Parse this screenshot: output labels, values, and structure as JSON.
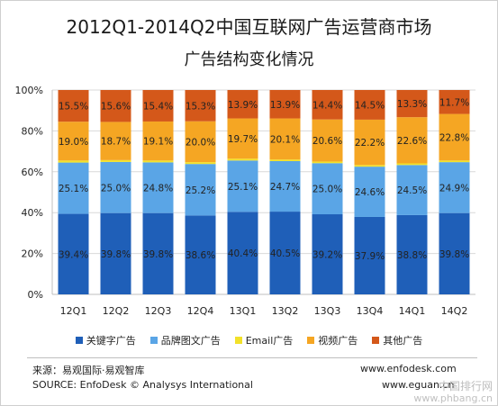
{
  "title_line1": "2012Q1-2014Q2中国互联网广告运营商市场",
  "title_line2": "广告结构变化情况",
  "source_cn": "来源：易观国际·易观智库",
  "source_en": "SOURCE: EnfoDesk © Analysys International",
  "url1": "www.enfodesk.com",
  "url2": "www.eguan.cn",
  "watermark1": "中国排行网",
  "watermark2": "www.phbang.cn",
  "chart_data": {
    "type": "bar",
    "stacked": true,
    "percent": true,
    "categories": [
      "12Q1",
      "12Q2",
      "12Q3",
      "12Q4",
      "13Q1",
      "13Q2",
      "13Q3",
      "13Q4",
      "14Q1",
      "14Q2"
    ],
    "y_ticks": [
      "0%",
      "20%",
      "40%",
      "60%",
      "80%",
      "100%"
    ],
    "ylim": [
      0,
      100
    ],
    "grid": true,
    "legend_position": "bottom",
    "series": [
      {
        "name": "关键字广告",
        "color": "#1f5fb8",
        "values": [
          39.4,
          39.8,
          39.8,
          38.6,
          40.4,
          40.5,
          39.2,
          37.9,
          38.8,
          39.8
        ],
        "labels": [
          "39.4%",
          "39.8%",
          "39.8%",
          "38.6%",
          "40.4%",
          "40.5%",
          "39.2%",
          "37.9%",
          "38.8%",
          "39.8%"
        ]
      },
      {
        "name": "品牌图文广告",
        "color": "#5aa5e6",
        "values": [
          25.1,
          25.0,
          24.8,
          25.2,
          25.1,
          24.7,
          25.0,
          24.6,
          24.5,
          24.9
        ],
        "labels": [
          "25.1%",
          "25.0%",
          "24.8%",
          "25.2%",
          "25.1%",
          "24.7%",
          "25.0%",
          "24.6%",
          "24.5%",
          "24.9%"
        ]
      },
      {
        "name": "Email广告",
        "color": "#f2e12a",
        "values": [
          1.0,
          0.9,
          0.9,
          0.9,
          0.9,
          0.8,
          0.8,
          0.8,
          0.8,
          0.8
        ],
        "labels": [
          "1.0%",
          "0.9%",
          "0.9%",
          "0.9%",
          "0.9%",
          "0.8%",
          "0.8%",
          "0.8%",
          "0.8%",
          "0.8%"
        ]
      },
      {
        "name": "视频广告",
        "color": "#f5a623",
        "values": [
          19.0,
          18.7,
          19.1,
          20.0,
          19.7,
          20.1,
          20.6,
          22.2,
          22.6,
          22.8
        ],
        "labels": [
          "19.0%",
          "18.7%",
          "19.1%",
          "20.0%",
          "19.7%",
          "20.1%",
          "20.6%",
          "22.2%",
          "22.6%",
          "22.8%"
        ]
      },
      {
        "name": "其他广告",
        "color": "#d4581a",
        "values": [
          15.5,
          15.6,
          15.4,
          15.3,
          13.9,
          13.9,
          14.4,
          14.5,
          13.3,
          11.7
        ],
        "labels": [
          "15.5%",
          "15.6%",
          "15.4%",
          "15.3%",
          "13.9%",
          "13.9%",
          "14.4%",
          "14.5%",
          "13.3%",
          "11.7%"
        ]
      }
    ]
  }
}
